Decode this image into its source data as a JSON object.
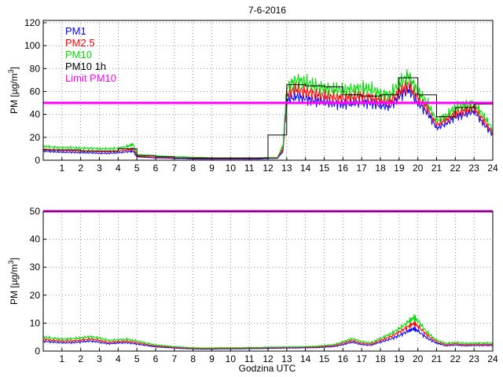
{
  "figure": {
    "title": "7-6-2016",
    "xlabel": "Godzina UTC"
  },
  "colors": {
    "pm1": "#0000ff",
    "pm25": "#ff0000",
    "pm10": "#00dd00",
    "pm10_1h": "#000000",
    "limit": "#ff00ff"
  },
  "chart_data": [
    {
      "type": "line",
      "ylabel": {
        "main": "PM [µg/m",
        "sup": "3",
        "end": "]"
      },
      "xlim": [
        0,
        24
      ],
      "ylim": [
        0,
        122
      ],
      "xticks": [
        "1",
        "2",
        "3",
        "4",
        "5",
        "6",
        "7",
        "8",
        "9",
        "10",
        "11",
        "12",
        "13",
        "14",
        "15",
        "16",
        "17",
        "18",
        "19",
        "20",
        "21",
        "22",
        "23",
        "24"
      ],
      "yticks": [
        "0",
        "20",
        "40",
        "60",
        "80",
        "100",
        "120"
      ],
      "grid": true,
      "legend": {
        "position": "top-left",
        "entries": [
          "PM1",
          "PM2.5",
          "PM10",
          "PM10 1h",
          "Limit PM10"
        ]
      },
      "limit": 50,
      "series": [
        {
          "name": "PM1",
          "x": [
            0,
            0.5,
            1,
            1.5,
            2,
            2.5,
            3,
            3.5,
            4,
            4.5,
            4.8,
            5,
            5.5,
            6,
            6.5,
            7,
            7.5,
            8,
            8.5,
            9,
            9.5,
            10,
            10.5,
            11,
            11.5,
            12,
            12.5,
            12.8,
            13,
            13.5,
            14,
            14.5,
            15,
            15.5,
            16,
            16.5,
            17,
            17.5,
            18,
            18.5,
            19,
            19.5,
            20,
            20.5,
            21,
            21.5,
            22,
            22.5,
            23,
            23.5,
            24
          ],
          "y": [
            8,
            7.5,
            7,
            7,
            6.5,
            6.5,
            6,
            6,
            6.5,
            7.5,
            8,
            3,
            2.5,
            2,
            2,
            1.5,
            1.5,
            1,
            1,
            1,
            1,
            1,
            1,
            1,
            1,
            1.5,
            1.5,
            8,
            52,
            56,
            54,
            52,
            51,
            50,
            49,
            50,
            51,
            50,
            48,
            47,
            56,
            62,
            50,
            42,
            28,
            32,
            38,
            40,
            43,
            32,
            22
          ]
        },
        {
          "name": "PM2.5",
          "x": [
            0,
            0.5,
            1,
            1.5,
            2,
            2.5,
            3,
            3.5,
            4,
            4.5,
            4.8,
            5,
            5.5,
            6,
            6.5,
            7,
            7.5,
            8,
            8.5,
            9,
            9.5,
            10,
            10.5,
            11,
            11.5,
            12,
            12.5,
            12.8,
            13,
            13.5,
            14,
            14.5,
            15,
            15.5,
            16,
            16.5,
            17,
            17.5,
            18,
            18.5,
            19,
            19.5,
            20,
            20.5,
            21,
            21.5,
            22,
            22.5,
            23,
            23.5,
            24
          ],
          "y": [
            9.5,
            9,
            8.5,
            8.5,
            8,
            8,
            7.5,
            7.5,
            8,
            9,
            10,
            3.5,
            3,
            2.5,
            2.5,
            2,
            2,
            1.5,
            1.5,
            1.5,
            1.5,
            1.5,
            1.5,
            1.5,
            1.5,
            2,
            2,
            10,
            58,
            62,
            60,
            58,
            56,
            55,
            54,
            55,
            56,
            55,
            52,
            51,
            60,
            66,
            54,
            46,
            31,
            35,
            41,
            43,
            46,
            35,
            24
          ]
        },
        {
          "name": "PM10",
          "x": [
            0,
            0.5,
            1,
            1.5,
            2,
            2.5,
            3,
            3.5,
            4,
            4.5,
            4.8,
            5,
            5.5,
            6,
            6.5,
            7,
            7.5,
            8,
            8.5,
            9,
            9.5,
            10,
            10.5,
            11,
            11.5,
            12,
            12.5,
            12.8,
            13,
            13.5,
            14,
            14.5,
            15,
            15.5,
            16,
            16.5,
            17,
            17.5,
            18,
            18.5,
            19,
            19.5,
            20,
            20.5,
            21,
            21.5,
            22,
            22.5,
            23,
            23.5,
            24
          ],
          "y": [
            12,
            11.5,
            11,
            11,
            10.5,
            10.5,
            10,
            10,
            10.5,
            12,
            14,
            5,
            4.5,
            4,
            3.5,
            3,
            3,
            2.5,
            2.5,
            2,
            2,
            2,
            2,
            2,
            2,
            2.5,
            2.5,
            13,
            64,
            70,
            68,
            65,
            63,
            62,
            61,
            62,
            63,
            62,
            58,
            57,
            67,
            74,
            60,
            50,
            35,
            39,
            46,
            48,
            50,
            39,
            27
          ]
        },
        {
          "name": "PM10 1h",
          "step": true,
          "x": [
            0,
            1,
            2,
            3,
            4,
            5,
            6,
            7,
            8,
            9,
            10,
            11,
            12,
            13,
            14,
            15,
            16,
            17,
            18,
            19,
            20,
            21,
            22,
            23,
            24
          ],
          "y": [
            9,
            9,
            8,
            8,
            10,
            4,
            3,
            2,
            2,
            2,
            2,
            2,
            22,
            66,
            65,
            64,
            57,
            56,
            57,
            72,
            57,
            38,
            46,
            49,
            49
          ]
        }
      ]
    },
    {
      "type": "line",
      "ylabel": {
        "main": "PM [µg/m",
        "sup": "3",
        "end": "]"
      },
      "xlim": [
        0,
        24
      ],
      "ylim": [
        0,
        50
      ],
      "xticks": [
        "1",
        "2",
        "3",
        "4",
        "5",
        "6",
        "7",
        "8",
        "9",
        "10",
        "11",
        "12",
        "13",
        "14",
        "15",
        "16",
        "17",
        "18",
        "19",
        "20",
        "21",
        "22",
        "23",
        "24"
      ],
      "yticks": [
        "0",
        "10",
        "20",
        "30",
        "40",
        "50"
      ],
      "grid": true,
      "limit": 50,
      "series": [
        {
          "name": "PM1",
          "x": [
            0,
            0.5,
            1,
            1.5,
            2,
            2.5,
            3,
            3.5,
            4,
            4.5,
            5,
            5.5,
            6,
            6.5,
            7,
            7.5,
            8,
            8.5,
            9,
            9.5,
            10,
            10.5,
            11,
            11.5,
            12,
            12.5,
            13,
            13.5,
            14,
            14.5,
            15,
            15.5,
            16,
            16.5,
            17,
            17.5,
            18,
            18.5,
            19,
            19.5,
            19.8,
            20,
            20.5,
            21,
            21.5,
            22,
            22.5,
            23,
            23.5,
            24
          ],
          "y": [
            3.5,
            3.2,
            3,
            3,
            3.3,
            3.6,
            3.2,
            2.6,
            2.9,
            3,
            2.5,
            2,
            1.5,
            1.3,
            1.1,
            0.9,
            0.8,
            0.7,
            0.7,
            0.8,
            0.8,
            0.8,
            0.9,
            0.9,
            1,
            1,
            1.1,
            1.1,
            1.2,
            1.2,
            1.4,
            1.6,
            2.3,
            3.2,
            2.3,
            2.1,
            3.2,
            4.2,
            5.5,
            7.2,
            8,
            7.2,
            4.6,
            2.8,
            1.9,
            2.2,
            1.9,
            2,
            2,
            2
          ]
        },
        {
          "name": "PM2.5",
          "x": [
            0,
            0.5,
            1,
            1.5,
            2,
            2.5,
            3,
            3.5,
            4,
            4.5,
            5,
            5.5,
            6,
            6.5,
            7,
            7.5,
            8,
            8.5,
            9,
            9.5,
            10,
            10.5,
            11,
            11.5,
            12,
            12.5,
            13,
            13.5,
            14,
            14.5,
            15,
            15.5,
            16,
            16.5,
            17,
            17.5,
            18,
            18.5,
            19,
            19.5,
            19.8,
            20,
            20.5,
            21,
            21.5,
            22,
            22.5,
            23,
            23.5,
            24
          ],
          "y": [
            4.2,
            3.8,
            3.6,
            3.6,
            3.9,
            4.3,
            3.8,
            3.1,
            3.4,
            3.5,
            3,
            2.4,
            1.8,
            1.6,
            1.3,
            1.1,
            1,
            0.9,
            0.9,
            1,
            1,
            1,
            1.1,
            1.1,
            1.2,
            1.2,
            1.3,
            1.3,
            1.4,
            1.4,
            1.7,
            1.9,
            2.8,
            3.8,
            2.7,
            2.5,
            3.8,
            5,
            6.8,
            8.8,
            10,
            9,
            5.6,
            3.3,
            2.3,
            2.6,
            2.3,
            2.4,
            2.4,
            2.4
          ]
        },
        {
          "name": "PM10",
          "x": [
            0,
            0.5,
            1,
            1.5,
            2,
            2.5,
            3,
            3.5,
            4,
            4.5,
            5,
            5.5,
            6,
            6.5,
            7,
            7.5,
            8,
            8.5,
            9,
            9.5,
            10,
            10.5,
            11,
            11.5,
            12,
            12.5,
            13,
            13.5,
            14,
            14.5,
            15,
            15.5,
            16,
            16.5,
            17,
            17.5,
            18,
            18.5,
            19,
            19.5,
            19.8,
            20,
            20.5,
            21,
            21.5,
            22,
            22.5,
            23,
            23.5,
            24
          ],
          "y": [
            5,
            4.6,
            4.3,
            4.4,
            4.7,
            5.2,
            4.6,
            3.8,
            4.1,
            4.2,
            3.6,
            2.9,
            2.2,
            1.9,
            1.6,
            1.4,
            1.2,
            1.1,
            1.1,
            1.2,
            1.2,
            1.2,
            1.3,
            1.3,
            1.4,
            1.4,
            1.5,
            1.5,
            1.6,
            1.7,
            2,
            2.3,
            3.3,
            4.5,
            3.3,
            3,
            4.6,
            6,
            8,
            10.5,
            12,
            10.8,
            6.6,
            3.9,
            2.8,
            3.1,
            2.8,
            2.9,
            2.9,
            2.9
          ]
        }
      ]
    }
  ]
}
